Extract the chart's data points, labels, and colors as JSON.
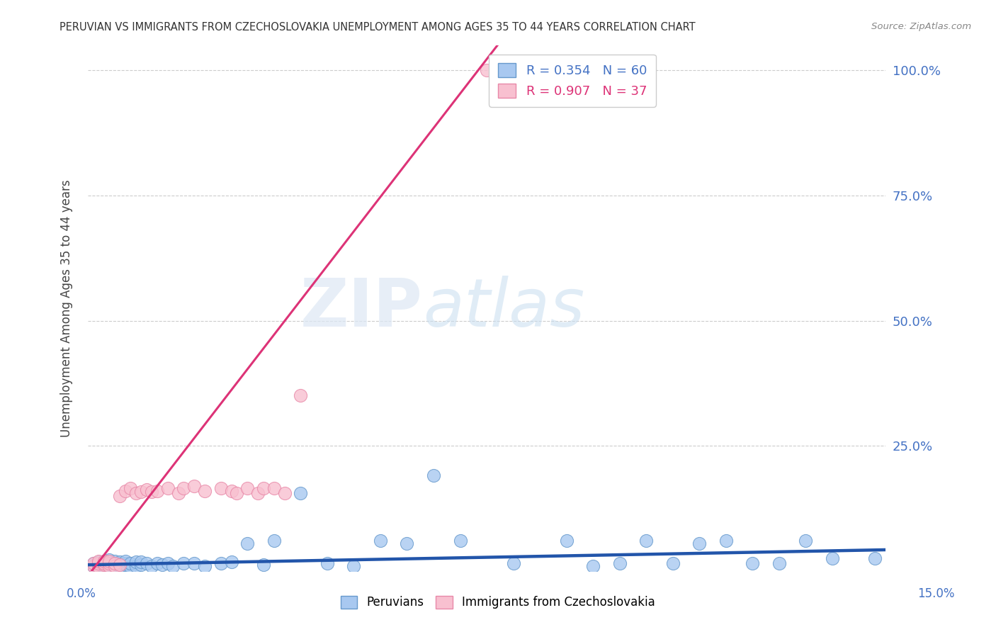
{
  "title": "PERUVIAN VS IMMIGRANTS FROM CZECHOSLOVAKIA UNEMPLOYMENT AMONG AGES 35 TO 44 YEARS CORRELATION CHART",
  "source": "Source: ZipAtlas.com",
  "ylabel": "Unemployment Among Ages 35 to 44 years",
  "xlim": [
    0.0,
    0.15
  ],
  "ylim": [
    0.0,
    1.05
  ],
  "peruvians_color": "#a8c8f0",
  "peruvians_edge_color": "#6699cc",
  "czech_color": "#f8c0d0",
  "czech_edge_color": "#e888a8",
  "peruvian_line_color": "#2255aa",
  "czech_line_color": "#dd3377",
  "watermark_zip": "ZIP",
  "watermark_atlas": "atlas",
  "background_color": "#ffffff",
  "peruvians_x": [
    0.001,
    0.001,
    0.002,
    0.002,
    0.002,
    0.003,
    0.003,
    0.003,
    0.004,
    0.004,
    0.004,
    0.005,
    0.005,
    0.005,
    0.006,
    0.006,
    0.006,
    0.007,
    0.007,
    0.007,
    0.008,
    0.008,
    0.009,
    0.009,
    0.01,
    0.01,
    0.011,
    0.012,
    0.013,
    0.014,
    0.015,
    0.016,
    0.018,
    0.02,
    0.022,
    0.025,
    0.027,
    0.03,
    0.033,
    0.035,
    0.04,
    0.045,
    0.05,
    0.055,
    0.06,
    0.065,
    0.07,
    0.08,
    0.09,
    0.095,
    0.1,
    0.105,
    0.11,
    0.115,
    0.12,
    0.125,
    0.13,
    0.135,
    0.14,
    0.148
  ],
  "peruvians_y": [
    0.01,
    0.015,
    0.005,
    0.012,
    0.018,
    0.008,
    0.015,
    0.02,
    0.01,
    0.015,
    0.022,
    0.008,
    0.015,
    0.02,
    0.01,
    0.015,
    0.018,
    0.012,
    0.015,
    0.02,
    0.008,
    0.015,
    0.01,
    0.018,
    0.012,
    0.018,
    0.015,
    0.01,
    0.015,
    0.012,
    0.015,
    0.01,
    0.015,
    0.015,
    0.01,
    0.015,
    0.018,
    0.055,
    0.012,
    0.06,
    0.155,
    0.015,
    0.01,
    0.06,
    0.055,
    0.19,
    0.06,
    0.015,
    0.06,
    0.01,
    0.015,
    0.06,
    0.015,
    0.055,
    0.06,
    0.015,
    0.015,
    0.06,
    0.025,
    0.025
  ],
  "czech_x": [
    0.001,
    0.001,
    0.002,
    0.002,
    0.002,
    0.003,
    0.003,
    0.003,
    0.004,
    0.004,
    0.004,
    0.005,
    0.005,
    0.006,
    0.006,
    0.007,
    0.008,
    0.009,
    0.01,
    0.011,
    0.012,
    0.013,
    0.015,
    0.017,
    0.018,
    0.02,
    0.022,
    0.025,
    0.027,
    0.028,
    0.03,
    0.032,
    0.033,
    0.035,
    0.037,
    0.04,
    0.075
  ],
  "czech_y": [
    0.01,
    0.015,
    0.008,
    0.015,
    0.02,
    0.012,
    0.015,
    0.02,
    0.01,
    0.015,
    0.02,
    0.01,
    0.015,
    0.012,
    0.15,
    0.16,
    0.165,
    0.155,
    0.158,
    0.162,
    0.158,
    0.16,
    0.165,
    0.155,
    0.165,
    0.17,
    0.16,
    0.165,
    0.16,
    0.155,
    0.165,
    0.155,
    0.165,
    0.165,
    0.155,
    0.35,
    1.0
  ],
  "czech_line_x0": 0.0,
  "czech_line_y0": -0.01,
  "czech_line_x1": 0.077,
  "czech_line_y1": 1.05,
  "peru_line_x0": 0.0,
  "peru_line_y0": 0.012,
  "peru_line_x1": 0.15,
  "peru_line_y1": 0.042
}
